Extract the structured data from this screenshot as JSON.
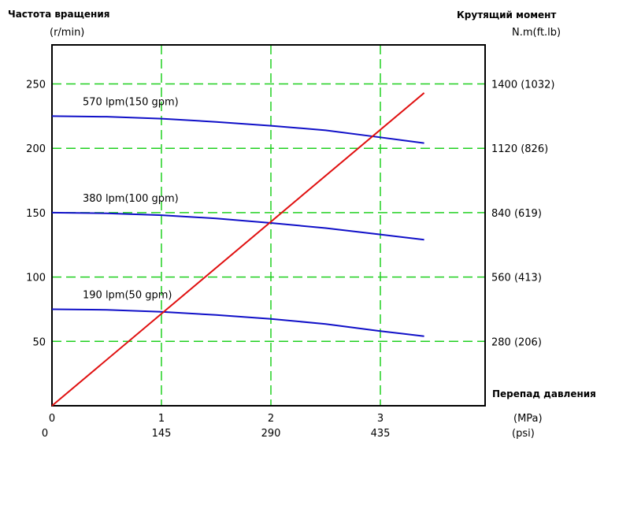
{
  "chart_data": {
    "type": "line",
    "left_axis": {
      "title": "Частота вращения",
      "unit": "(r/min)",
      "ticks": [
        50,
        100,
        150,
        200,
        250
      ],
      "range": [
        0,
        280
      ]
    },
    "right_axis": {
      "title": "Крутящий момент",
      "unit": "N.m(ft.lb)",
      "ticks": [
        "280 (206)",
        "560 (413)",
        "840 (619)",
        "1120 (826)",
        "1400 (1032)"
      ]
    },
    "x_axis": {
      "title": "Перепад давления",
      "range": [
        0,
        4
      ],
      "ticks_mpa": [
        0,
        1,
        2,
        3
      ],
      "ticks_psi": [
        0,
        145,
        290,
        435
      ],
      "unit_mpa": "(MPa)",
      "unit_psi": "(psi)"
    },
    "grid": true,
    "colors": {
      "speed": "#1010c8",
      "torque": "#e01010",
      "grid": "#20d020"
    },
    "speed_series": [
      {
        "name": "570 lpm(150 gpm)",
        "x": [
          0,
          0.5,
          1,
          1.5,
          2,
          2.5,
          3,
          3.4
        ],
        "y": [
          225,
          224.5,
          223,
          220.5,
          217.5,
          214,
          208.5,
          204
        ]
      },
      {
        "name": "380 lpm(100 gpm)",
        "x": [
          0,
          0.5,
          1,
          1.5,
          2,
          2.5,
          3,
          3.4
        ],
        "y": [
          150,
          149.5,
          148,
          145.5,
          142,
          138,
          133,
          129
        ]
      },
      {
        "name": "190 lpm(50 gpm)",
        "x": [
          0,
          0.5,
          1,
          1.5,
          2,
          2.5,
          3,
          3.4
        ],
        "y": [
          75,
          74.5,
          73,
          70.5,
          67.5,
          63.5,
          58,
          54
        ]
      }
    ],
    "torque_series": {
      "x": [
        0,
        3.4
      ],
      "y": [
        0,
        243
      ]
    }
  }
}
